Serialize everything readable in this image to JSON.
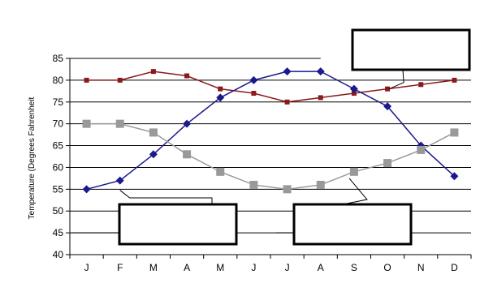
{
  "chart_data": {
    "type": "line",
    "title": "",
    "xlabel": "",
    "ylabel": "Temperature (Degrees Fahrenheit",
    "categories": [
      "J",
      "F",
      "M",
      "A",
      "M",
      "J",
      "J",
      "A",
      "S",
      "O",
      "N",
      "D"
    ],
    "ylim": [
      40,
      85
    ],
    "yticks": [
      40,
      45,
      50,
      55,
      60,
      65,
      70,
      75,
      80,
      85
    ],
    "grid": true,
    "legend": "none",
    "series": [
      {
        "color": "#8b1a1a",
        "marker": "small-square",
        "values": [
          80,
          80,
          82,
          81,
          78,
          77,
          75,
          76,
          77,
          78,
          79,
          80
        ]
      },
      {
        "color": "#1a1a8c",
        "marker": "diamond",
        "values": [
          55,
          57,
          63,
          70,
          76,
          80,
          82,
          82,
          78,
          74,
          65,
          58
        ]
      },
      {
        "color": "#999999",
        "marker": "large-square",
        "values": [
          70,
          70,
          68,
          63,
          59,
          56,
          55,
          56,
          59,
          61,
          64,
          68
        ]
      }
    ],
    "annotations": [
      {
        "label": "",
        "box": "upper-right",
        "points_to": {
          "series": 0,
          "month": "O"
        }
      },
      {
        "label": "",
        "box": "lower-left",
        "points_to": {
          "series": 1,
          "month": "F"
        }
      },
      {
        "label": "",
        "box": "lower-right",
        "points_to": {
          "series": 2,
          "month": "S"
        }
      }
    ]
  }
}
